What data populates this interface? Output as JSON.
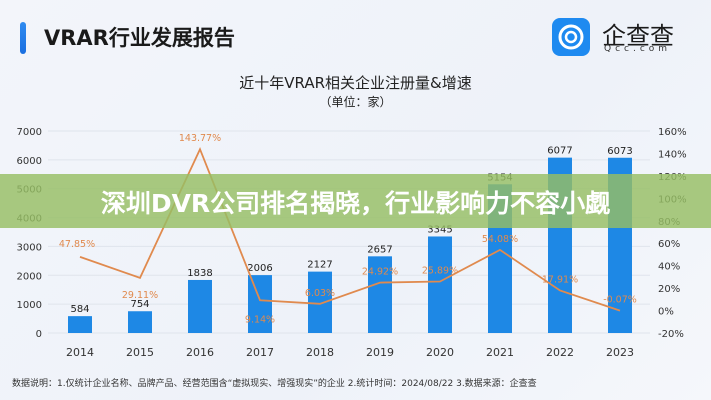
{
  "header": {
    "title": "VRAR行业发展报告",
    "logo_text": "企查查",
    "logo_sub": "Qcc.com"
  },
  "banner": {
    "text": "深圳DVR公司排名揭晓，行业影响力不容小觑"
  },
  "footnote": "数据说明：1.仅统计企业名称、品牌产品、经营范围含“虚拟现实、增强现实”的企业   2.统计时间：2024/08/22   3.数据来源：企查查",
  "chart_data": {
    "type": "bar+line",
    "title": "近十年VRAR相关企业注册量&增速",
    "subtitle": "（单位：家）",
    "categories": [
      "2014",
      "2015",
      "2016",
      "2017",
      "2018",
      "2019",
      "2020",
      "2021",
      "2022",
      "2023"
    ],
    "series": [
      {
        "type": "bar",
        "axis": "left",
        "values": [
          584,
          754,
          1838,
          2006,
          2127,
          2657,
          3345,
          5154,
          6077,
          6073
        ],
        "color": "#1e88e5"
      },
      {
        "type": "line",
        "axis": "right",
        "values": [
          47.85,
          29.11,
          143.77,
          9.14,
          6.03,
          24.92,
          25.89,
          54.08,
          17.91,
          -0.07
        ],
        "labels": [
          "47.85%",
          "29.11%",
          "143.77%",
          "9.14%",
          "6.03%",
          "24.92%",
          "25.89%",
          "54.08%",
          "17.91%",
          "-0.07%"
        ],
        "color": "#e08a4e"
      }
    ],
    "ylim_left": [
      0,
      7000
    ],
    "yticks_left": [
      "0",
      "1000",
      "2000",
      "3000",
      "4000",
      "5000",
      "6000",
      "7000"
    ],
    "ylim_right": [
      -20,
      160
    ],
    "yticks_right": [
      "-20%",
      "0%",
      "20%",
      "40%",
      "60%",
      "80%",
      "100%",
      "120%",
      "140%",
      "160%"
    ],
    "grid": true
  }
}
